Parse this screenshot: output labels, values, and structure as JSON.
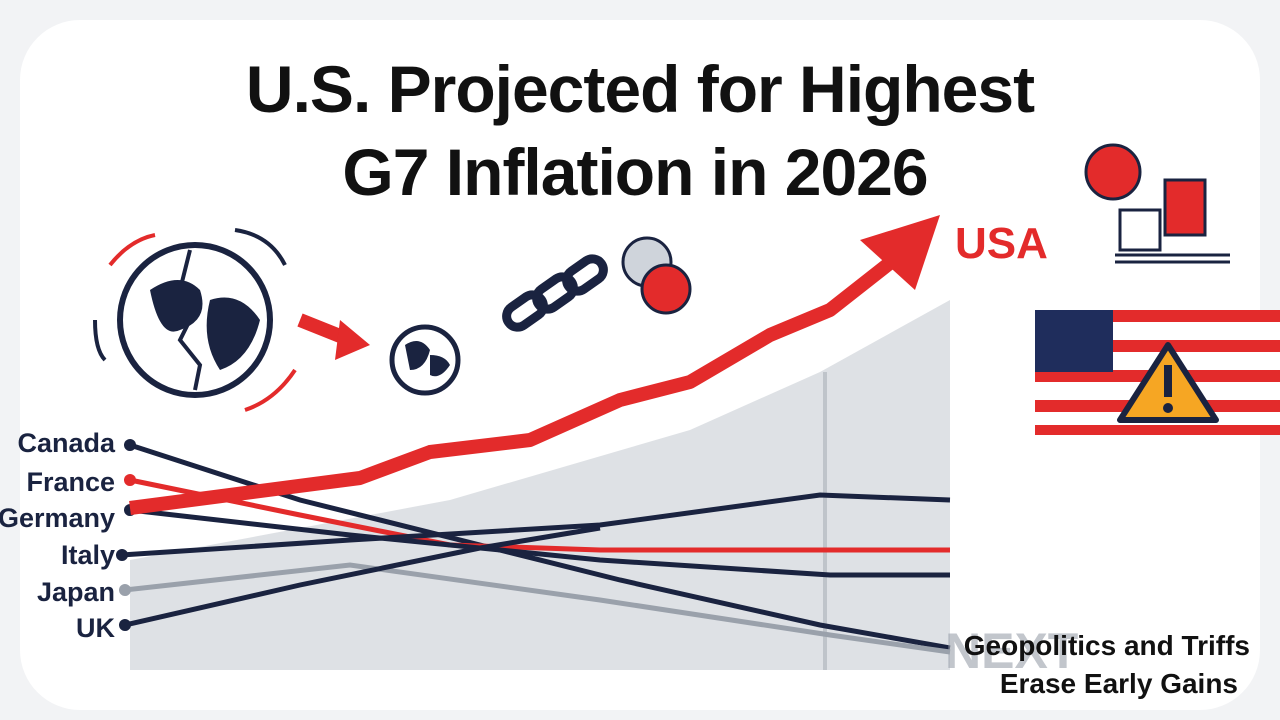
{
  "title": {
    "line1": "U.S. Projected for Highest",
    "line2": "G7 Inflation in 2026"
  },
  "highlight_label": "USA",
  "countries": [
    "Canada",
    "France",
    "Germany",
    "Italy",
    "Japan",
    "UK"
  ],
  "caption": {
    "line1": "Geopolitics and Triffs",
    "line2": "Erase Early Gains"
  },
  "watermark": "NEXT"
}
